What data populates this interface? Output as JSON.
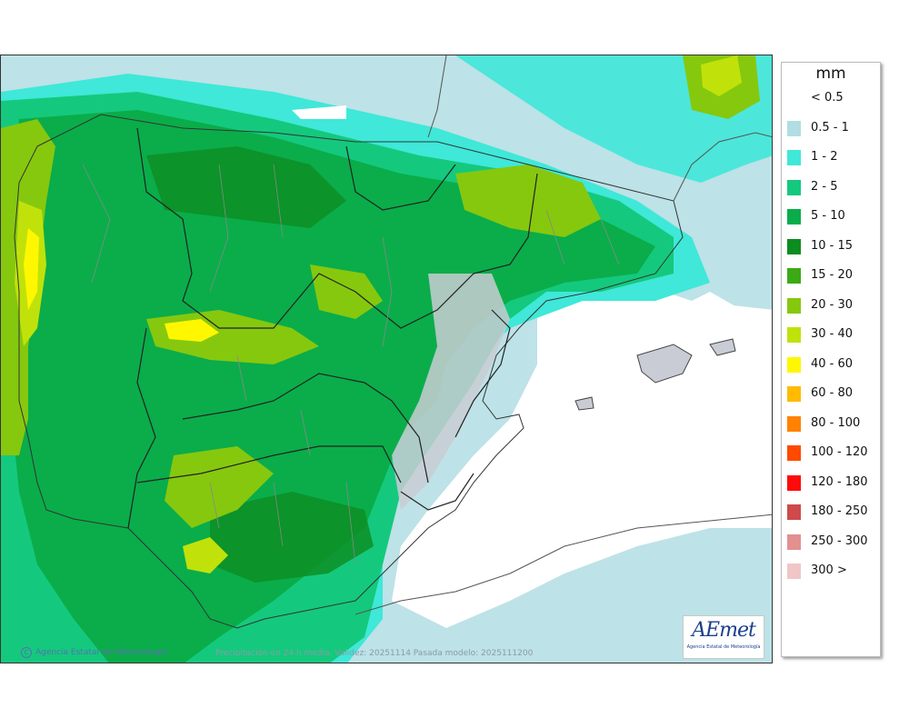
{
  "legend": {
    "title": "mm",
    "items": [
      {
        "label": "< 0.5",
        "color": "#ffffff"
      },
      {
        "label": "0.5 - 1",
        "color": "#b2dde3"
      },
      {
        "label": "1 - 2",
        "color": "#3fe8d8"
      },
      {
        "label": "2 - 5",
        "color": "#14c97d"
      },
      {
        "label": "5 - 10",
        "color": "#0aad4a"
      },
      {
        "label": "10 - 15",
        "color": "#0c8c21"
      },
      {
        "label": "15 - 20",
        "color": "#3caa14"
      },
      {
        "label": "20 - 30",
        "color": "#86c80e"
      },
      {
        "label": "30 - 40",
        "color": "#c0e20a"
      },
      {
        "label": "40 - 60",
        "color": "#fff700"
      },
      {
        "label": "60 - 80",
        "color": "#ffbb00"
      },
      {
        "label": "80 - 100",
        "color": "#ff8200"
      },
      {
        "label": "100 - 120",
        "color": "#ff4a00"
      },
      {
        "label": "120 - 180",
        "color": "#ff0a0a"
      },
      {
        "label": "180 - 250",
        "color": "#cf4a4a"
      },
      {
        "label": "250 - 300",
        "color": "#e29090"
      },
      {
        "label": "300 >",
        "color": "#f1c6c6"
      }
    ]
  },
  "map": {
    "credit": "Agencia Estatal de Meteorología",
    "caption": "Precipitación en 24 h media. Validez: 20251114 Pasada modelo: 2025111200",
    "logo_text": "AEmet",
    "logo_sub": "Agencia Estatal de Meteorología"
  }
}
